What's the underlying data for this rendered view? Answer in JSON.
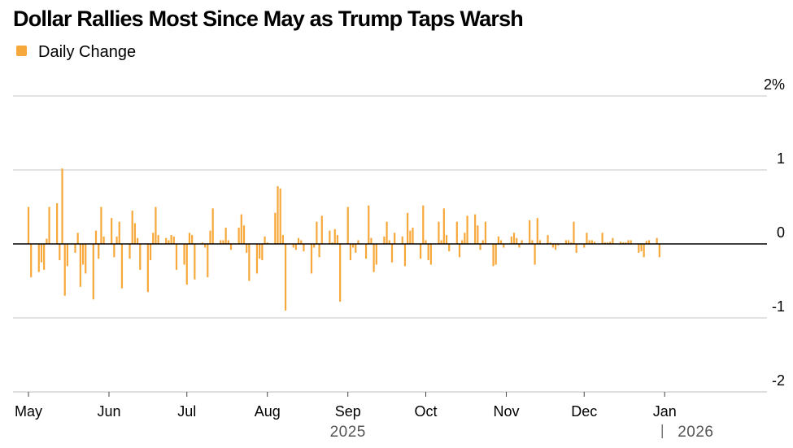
{
  "chart_data": {
    "type": "bar",
    "title": "Dollar Rallies Most Since May as Trump Taps Warsh",
    "legend": {
      "label": "Daily Change",
      "position": "top-left"
    },
    "colors": {
      "bar": "#f7a83a",
      "grid": "#d9d9d9",
      "zero_line": "#000000"
    },
    "y_axis": {
      "range": [
        -2,
        2
      ],
      "ticks": [
        {
          "value": 2,
          "label": "2%"
        },
        {
          "value": 1,
          "label": "1"
        },
        {
          "value": 0,
          "label": "0"
        },
        {
          "value": -1,
          "label": "-1"
        },
        {
          "value": -2,
          "label": "-2"
        }
      ],
      "position": "right",
      "grid": true
    },
    "x_axis": {
      "range": [
        "2025-05-01",
        "2026-01-31"
      ],
      "months": [
        {
          "date": "2025-05-01",
          "label": "May"
        },
        {
          "date": "2025-06-01",
          "label": "Jun"
        },
        {
          "date": "2025-07-01",
          "label": "Jul"
        },
        {
          "date": "2025-08-01",
          "label": "Aug"
        },
        {
          "date": "2025-09-01",
          "label": "Sep"
        },
        {
          "date": "2025-10-01",
          "label": "Oct"
        },
        {
          "date": "2025-11-01",
          "label": "Nov"
        },
        {
          "date": "2025-12-01",
          "label": "Dec"
        },
        {
          "date": "2026-01-01",
          "label": "Jan"
        }
      ],
      "years": [
        {
          "date": "2025-09-01",
          "label": "2025"
        },
        {
          "date": "2026-01-01",
          "label": "2026"
        }
      ]
    },
    "series": [
      {
        "name": "Daily Change",
        "start_date": "2025-05-01",
        "values": [
          0.5,
          -0.45,
          -0.38,
          -0.25,
          -0.35,
          0.07,
          0.5,
          0.55,
          -0.22,
          1.02,
          -0.7,
          -0.3,
          -0.12,
          0.15,
          -0.58,
          -0.28,
          -0.4,
          -0.75,
          0.18,
          -0.2,
          0.5,
          0.1,
          0.35,
          -0.18,
          0.1,
          0.3,
          -0.6,
          -0.2,
          0.45,
          0.28,
          0.08,
          -0.35,
          -0.65,
          -0.22,
          0.15,
          0.5,
          0.12,
          0.08,
          0.05,
          0.12,
          0.1,
          -0.35,
          -0.28,
          -0.55,
          0.15,
          0.12,
          -0.48,
          0.02,
          -0.05,
          -0.45,
          0.18,
          0.48,
          0.05,
          0.05,
          0.22,
          0.05,
          -0.08,
          0.22,
          0.4,
          0.25,
          -0.12,
          -0.5,
          -0.4,
          -0.2,
          -0.22,
          0.1,
          0.02,
          0.42,
          0.78,
          0.75,
          0.12,
          -0.9,
          -0.05,
          -0.08,
          0.08,
          0.05,
          -0.1,
          -0.4,
          -0.05,
          0.3,
          -0.18,
          0.38,
          0.18,
          0.02,
          0.2,
          0.12,
          -0.78,
          0.5,
          -0.22,
          -0.05,
          -0.12,
          0.05,
          -0.2,
          0.52,
          0.08,
          -0.38,
          -0.28,
          0.1,
          0.3,
          0.05,
          -0.25,
          0.15,
          0.1,
          -0.3,
          0.42,
          0.18,
          0.22,
          -0.2,
          0.52,
          0.05,
          -0.22,
          -0.28,
          0.3,
          0.05,
          0.48,
          0.12,
          -0.1,
          0.3,
          -0.18,
          0.05,
          0.15,
          0.38,
          0.4,
          0.25,
          -0.08,
          0.05,
          0.3,
          -0.3,
          -0.28,
          0.1,
          0.05,
          -0.05,
          0.1,
          0.15,
          0.08,
          -0.05,
          0.05,
          0.32,
          0.05,
          -0.28,
          0.35,
          0.05,
          0.12,
          0.02,
          -0.05,
          -0.08,
          -0.02,
          0.05,
          0.05,
          0.02,
          0.3,
          -0.12,
          -0.05,
          0.15,
          0.05,
          0.05,
          0.03,
          0.15,
          0.02,
          0.02,
          0.03,
          0.08,
          0.03,
          0.02,
          0.02,
          0.05,
          0.05,
          -0.12,
          -0.1,
          -0.18,
          0.04,
          0.05,
          0.08,
          -0.18
        ]
      }
    ]
  }
}
